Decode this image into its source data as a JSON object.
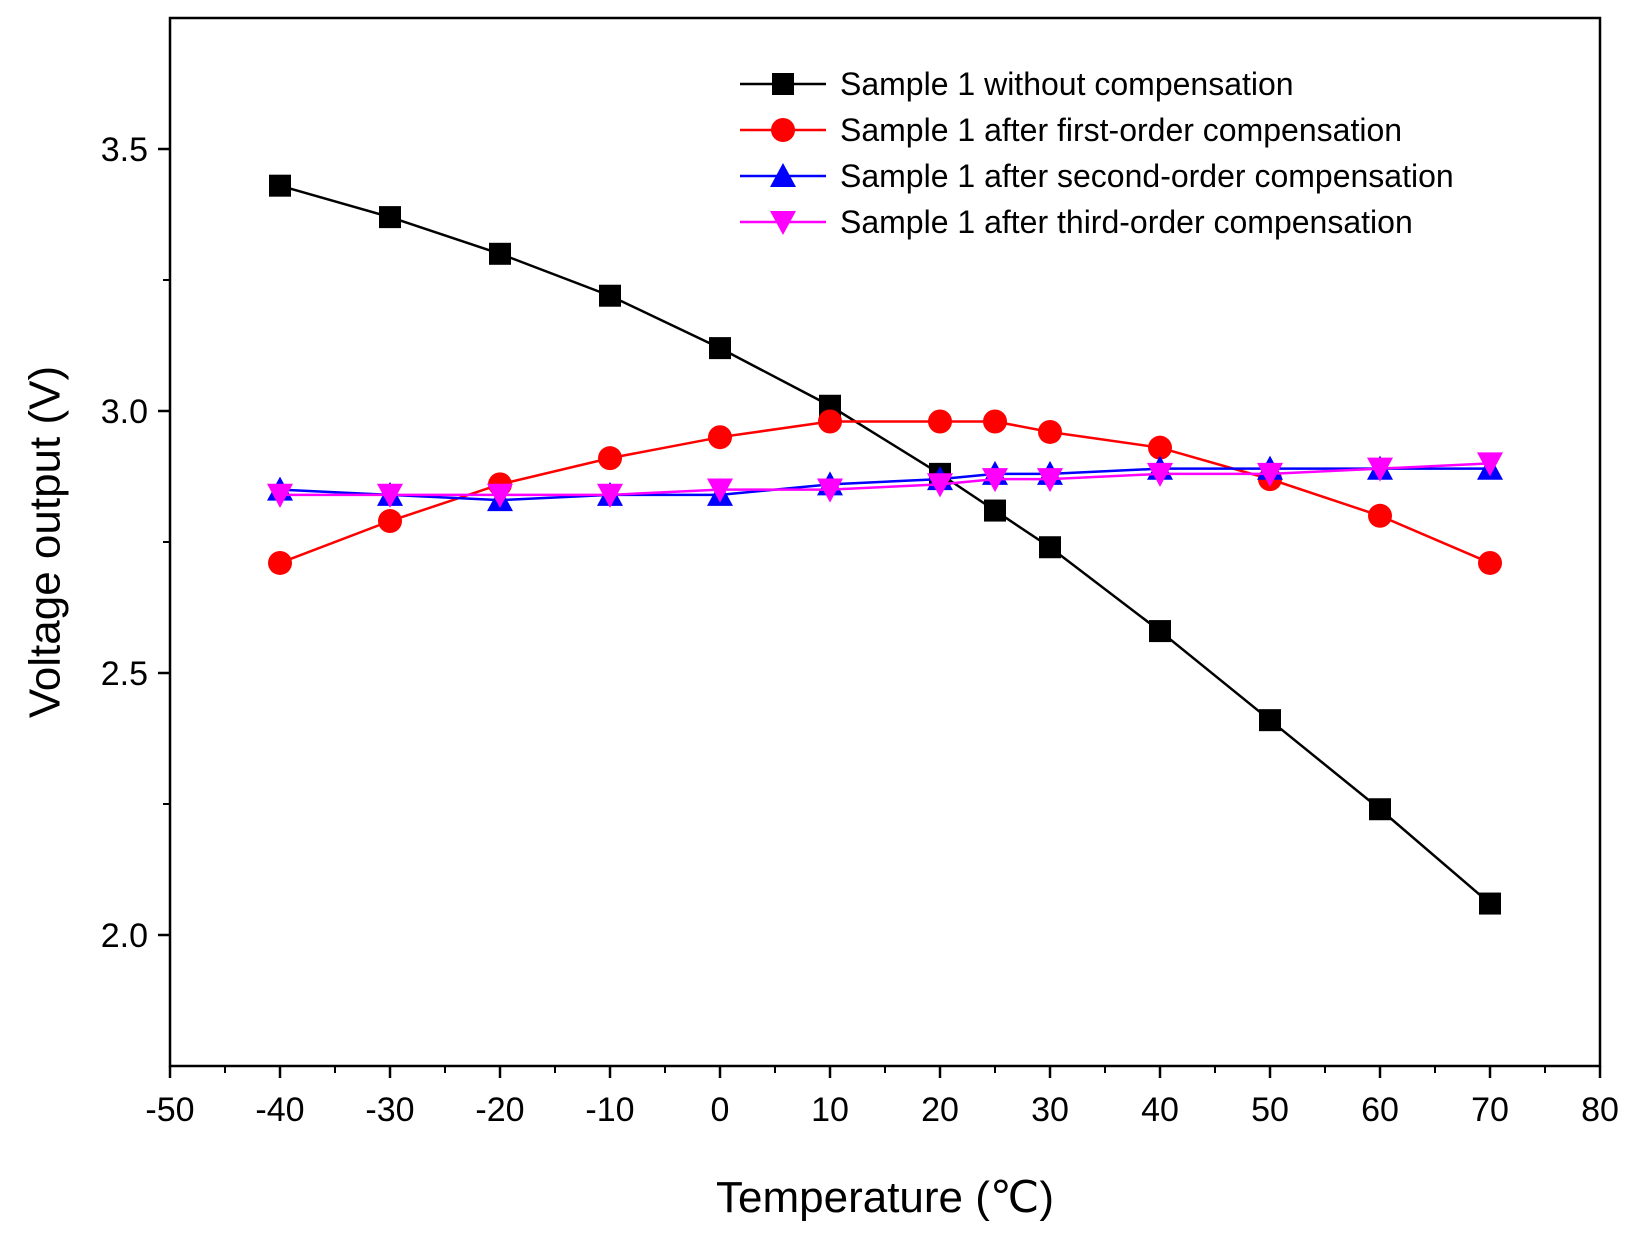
{
  "chart_data": {
    "type": "line",
    "xlabel": "Temperature (℃)",
    "ylabel": "Voltage output (V)",
    "xlim": [
      -50,
      80
    ],
    "ylim": [
      1.75,
      3.75
    ],
    "xticks": [
      -50,
      -40,
      -30,
      -20,
      -10,
      0,
      10,
      20,
      30,
      40,
      50,
      60,
      70,
      80
    ],
    "yticks": [
      2.0,
      2.5,
      3.0,
      3.5
    ],
    "xtick_labels": [
      "-50",
      "-40",
      "-30",
      "-20",
      "-10",
      "0",
      "10",
      "20",
      "30",
      "40",
      "50",
      "60",
      "70",
      "80"
    ],
    "ytick_labels": [
      "2.0",
      "2.5",
      "3.0",
      "3.5"
    ],
    "grid": false,
    "legend_position": "top-right",
    "x": [
      -40,
      -30,
      -20,
      -10,
      0,
      10,
      20,
      25,
      30,
      40,
      50,
      60,
      70
    ],
    "series": [
      {
        "name": "Sample 1 without compensation",
        "color": "#000000",
        "marker": "square",
        "values": [
          3.43,
          3.37,
          3.3,
          3.22,
          3.12,
          3.01,
          2.88,
          2.81,
          2.74,
          2.58,
          2.41,
          2.24,
          2.06
        ]
      },
      {
        "name": "Sample 1 after first-order compensation",
        "color": "#ff0000",
        "marker": "circle",
        "values": [
          2.71,
          2.79,
          2.86,
          2.91,
          2.95,
          2.98,
          2.98,
          2.98,
          2.96,
          2.93,
          2.87,
          2.8,
          2.71
        ]
      },
      {
        "name": "Sample 1 after second-order compensation",
        "color": "#0000ff",
        "marker": "triangle-up",
        "values": [
          2.85,
          2.84,
          2.83,
          2.84,
          2.84,
          2.86,
          2.87,
          2.88,
          2.88,
          2.89,
          2.89,
          2.89,
          2.89
        ]
      },
      {
        "name": "Sample 1 after third-order compensation",
        "color": "#ff00ff",
        "marker": "triangle-down",
        "values": [
          2.84,
          2.84,
          2.84,
          2.84,
          2.85,
          2.85,
          2.86,
          2.87,
          2.87,
          2.88,
          2.88,
          2.89,
          2.9
        ]
      }
    ]
  }
}
